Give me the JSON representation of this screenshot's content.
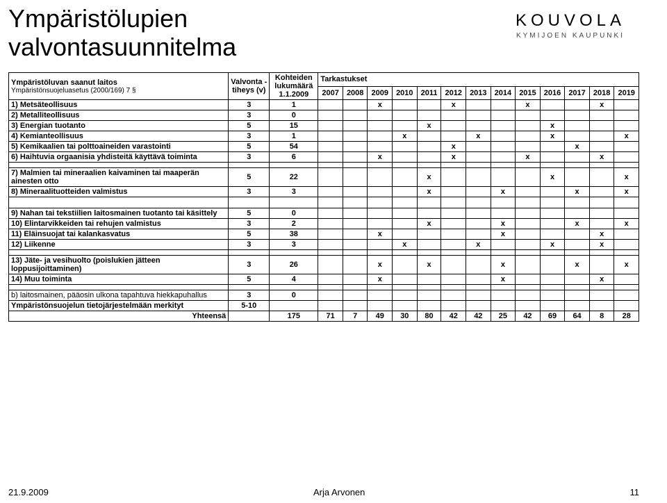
{
  "title_line1": "Ympäristölupien",
  "title_line2": "valvontasuunnitelma",
  "logo": {
    "main": "KOUVOLA",
    "sub": "KYMIJOEN KAUPUNKI"
  },
  "header": {
    "col_left_line1": "Ympäristöluvan saanut laitos",
    "col_left_line2": "Ympäristönsuojeluasetus (2000/169) 7 §",
    "col_valvonta": "Valvonta - tiheys (v)",
    "col_kohteiden": "Kohteiden lukumäärä 1.1.2009",
    "col_tarkastukset": "Tarkastukset"
  },
  "years": [
    "2007",
    "2008",
    "2009",
    "2010",
    "2011",
    "2012",
    "2013",
    "2014",
    "2015",
    "2016",
    "2017",
    "2018",
    "2019"
  ],
  "rows": [
    {
      "label": "1) Metsäteollisuus",
      "v": "3",
      "k": "1",
      "marks": [
        "",
        "",
        "x",
        "",
        "",
        "x",
        "",
        "",
        "x",
        "",
        "",
        "x",
        ""
      ]
    },
    {
      "label": "2) Metalliteollisuus",
      "v": "3",
      "k": "0",
      "marks": [
        "",
        "",
        "",
        "",
        "",
        "",
        "",
        "",
        "",
        "",
        "",
        "",
        ""
      ]
    },
    {
      "label": "3) Energian tuotanto",
      "v": "5",
      "k": "15",
      "marks": [
        "",
        "",
        "",
        "",
        "x",
        "",
        "",
        "",
        "",
        "x",
        "",
        "",
        ""
      ]
    },
    {
      "label": "4) Kemianteollisuus",
      "v": "3",
      "k": "1",
      "marks": [
        "",
        "",
        "",
        "x",
        "",
        "",
        "x",
        "",
        "",
        "x",
        "",
        "",
        "x"
      ]
    },
    {
      "label": "5) Kemikaalien tai polttoaineiden varastointi",
      "v": "5",
      "k": "54",
      "marks": [
        "",
        "",
        "",
        "",
        "",
        "x",
        "",
        "",
        "",
        "",
        "x",
        "",
        ""
      ]
    },
    {
      "label": "6) Haihtuvia orgaanisia yhdisteitä käyttävä toiminta",
      "v": "3",
      "k": "6",
      "marks": [
        "",
        "",
        "x",
        "",
        "",
        "x",
        "",
        "",
        "x",
        "",
        "",
        "x",
        ""
      ]
    }
  ],
  "rows2": [
    {
      "label": "7) Malmien tai mineraalien kaivaminen tai maaperän ainesten otto",
      "v": "5",
      "k": "22",
      "marks": [
        "",
        "",
        "",
        "",
        "x",
        "",
        "",
        "",
        "",
        "x",
        "",
        "",
        "x"
      ]
    },
    {
      "label": "8) Mineraalituotteiden valmistus",
      "v": "3",
      "k": "3",
      "marks": [
        "",
        "",
        "",
        "",
        "x",
        "",
        "",
        "x",
        "",
        "",
        "x",
        "",
        "x"
      ]
    }
  ],
  "rows3": [
    {
      "label": "9) Nahan tai tekstiilien laitosmainen tuotanto tai käsittely",
      "v": "5",
      "k": "0",
      "marks": [
        "",
        "",
        "",
        "",
        "",
        "",
        "",
        "",
        "",
        "",
        "",
        "",
        ""
      ]
    },
    {
      "label": "10) Elintarvikkeiden tai rehujen valmistus",
      "v": "3",
      "k": "2",
      "marks": [
        "",
        "",
        "",
        "",
        "x",
        "",
        "",
        "x",
        "",
        "",
        "x",
        "",
        "x"
      ]
    },
    {
      "label": "11) Eläinsuojat tai kalankasvatus",
      "v": "5",
      "k": "38",
      "marks": [
        "",
        "",
        "x",
        "",
        "",
        "",
        "",
        "x",
        "",
        "",
        "",
        "x",
        ""
      ]
    },
    {
      "label": "12) Liikenne",
      "v": "3",
      "k": "3",
      "marks": [
        "",
        "",
        "",
        "x",
        "",
        "",
        "x",
        "",
        "",
        "x",
        "",
        "x",
        ""
      ]
    }
  ],
  "rows4": [
    {
      "label": "13) Jäte- ja vesihuolto (poislukien jätteen loppusijoittaminen)",
      "v": "3",
      "k": "26",
      "marks": [
        "",
        "",
        "x",
        "",
        "x",
        "",
        "",
        "x",
        "",
        "",
        "x",
        "",
        "x"
      ]
    },
    {
      "label": "14) Muu toiminta",
      "v": "5",
      "k": "4",
      "marks": [
        "",
        "",
        "x",
        "",
        "",
        "",
        "",
        "x",
        "",
        "",
        "",
        "x",
        ""
      ]
    }
  ],
  "rows5": [
    {
      "label": "   b) laitosmainen, pääosin ulkona tapahtuva hiekkapuhallus",
      "v": "3",
      "k": "0",
      "marks": [
        "",
        "",
        "",
        "",
        "",
        "",
        "",
        "",
        "",
        "",
        "",
        "",
        ""
      ]
    },
    {
      "label": "Ympäristönsuojelun tietojärjestelmään merkityt",
      "v": "5-10",
      "k": "",
      "marks": [
        "",
        "",
        "",
        "",
        "",
        "",
        "",
        "",
        "",
        "",
        "",
        "",
        ""
      ]
    }
  ],
  "totals": {
    "label": "Yhteensä",
    "k": "175",
    "vals": [
      "71",
      "7",
      "49",
      "30",
      "80",
      "42",
      "42",
      "25",
      "42",
      "69",
      "64",
      "8",
      "28"
    ]
  },
  "footer": {
    "date": "21.9.2009",
    "author": "Arja Arvonen",
    "page": "11"
  },
  "colors": {
    "border": "#000000",
    "bg": "#ffffff",
    "text": "#000000"
  }
}
